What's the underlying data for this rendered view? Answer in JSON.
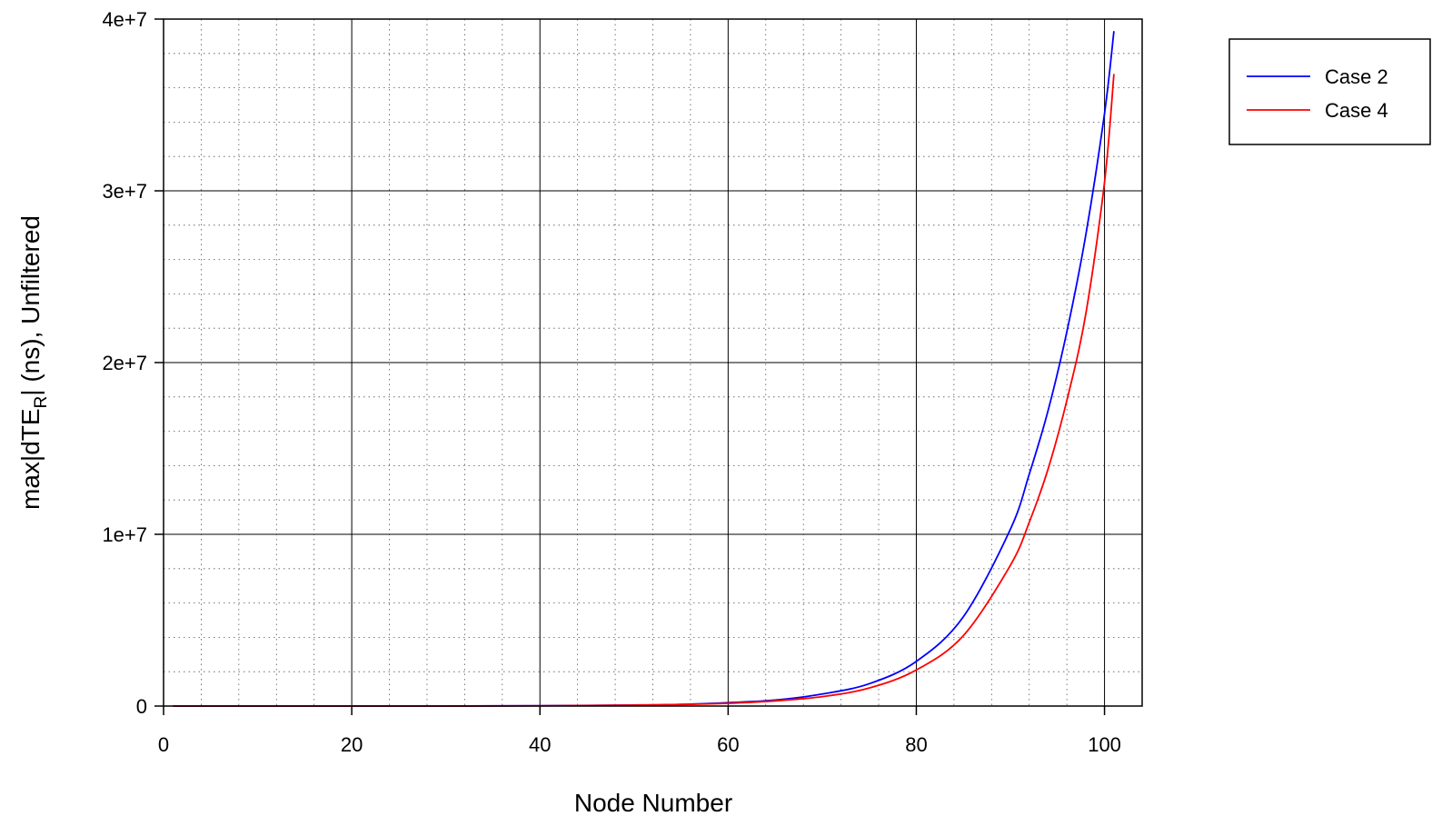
{
  "chart_data": {
    "type": "line",
    "xlabel": "Node Number",
    "ylabel": {
      "prefix": "max|dTE",
      "subscript": "R",
      "suffix": "| (ns), Unfiltered"
    },
    "xlim": [
      0,
      104
    ],
    "ylim": [
      0,
      40000000
    ],
    "xticks": [
      0,
      20,
      40,
      60,
      80,
      100
    ],
    "xtick_labels": [
      "0",
      "20",
      "40",
      "60",
      "80",
      "100"
    ],
    "yticks": [
      0,
      10000000,
      20000000,
      30000000,
      40000000
    ],
    "ytick_labels": [
      "0",
      "1e+7",
      "2e+7",
      "3e+7",
      "4e+7"
    ],
    "grid": {
      "major": true,
      "minor": true,
      "x_minor_step": 4,
      "y_minor_step": 2000000
    },
    "legend_position": "outside-top-right",
    "series": [
      {
        "name": "Case 2",
        "color": "#0000ff",
        "x": [
          1,
          10,
          20,
          30,
          40,
          50,
          55,
          60,
          65,
          70,
          75,
          80,
          85,
          90,
          92,
          94,
          96,
          98,
          100,
          101
        ],
        "y": [
          0,
          0,
          0,
          0,
          20000,
          60000,
          100000,
          200000,
          350000,
          700000,
          1300000,
          2600000,
          5200000,
          10300000,
          13500000,
          17200000,
          21800000,
          27400000,
          34500000,
          39300000
        ]
      },
      {
        "name": "Case 4",
        "color": "#ff0000",
        "x": [
          1,
          10,
          20,
          30,
          40,
          50,
          55,
          60,
          65,
          70,
          75,
          80,
          85,
          90,
          92,
          94,
          96,
          98,
          100,
          101
        ],
        "y": [
          0,
          0,
          0,
          0,
          15000,
          50000,
          90000,
          160000,
          300000,
          550000,
          1050000,
          2100000,
          4100000,
          8200000,
          10700000,
          13800000,
          17800000,
          22800000,
          30500000,
          36800000
        ]
      }
    ]
  }
}
